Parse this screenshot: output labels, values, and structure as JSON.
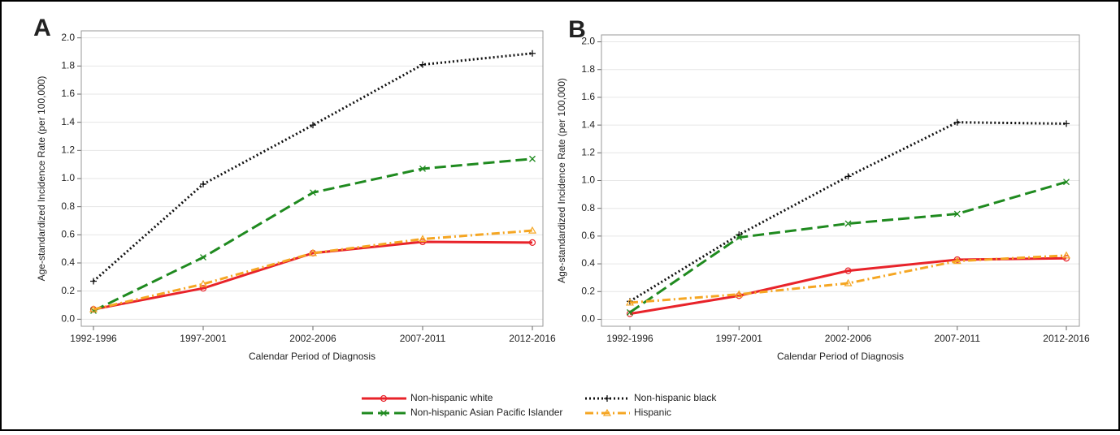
{
  "chart_data": [
    {
      "type": "line",
      "panel_label": "A",
      "x_label": "Calendar Period of Diagnosis",
      "y_label": "Age-standardized Incidence Rate (per 100,000)",
      "categories": [
        "1992-1996",
        "1997-2001",
        "2002-2006",
        "2007-2011",
        "2012-2016"
      ],
      "ylim": [
        -0.05,
        2.05
      ],
      "yticks": [
        {
          "value": 0,
          "label": "0.0"
        },
        0.2,
        0.4,
        0.6,
        0.8,
        {
          "value": 1,
          "label": "1.0"
        },
        1.2,
        1.4,
        1.6,
        1.8,
        {
          "value": 2,
          "label": "2.0"
        }
      ],
      "grid": true,
      "series": [
        {
          "name": "Non-hispanic white",
          "color": "#e8232a",
          "values": [
            0.07,
            0.22,
            0.47,
            0.55,
            0.545
          ]
        },
        {
          "name": "Non-hispanic black",
          "color": "#111111",
          "values": [
            0.27,
            0.96,
            1.38,
            1.81,
            1.89
          ]
        },
        {
          "name": "Non-hispanic Asian Pacific Islander",
          "color": "#1f8a1f",
          "values": [
            0.06,
            0.44,
            0.9,
            1.07,
            1.14
          ]
        },
        {
          "name": "Hispanic",
          "color": "#f5a623",
          "values": [
            0.07,
            0.25,
            0.47,
            0.57,
            0.63
          ]
        }
      ]
    },
    {
      "type": "line",
      "panel_label": "B",
      "x_label": "Calendar Period of Diagnosis",
      "y_label": "Age-standardized Incidence Rate (per 100,000)",
      "categories": [
        "1992-1996",
        "1997-2001",
        "2002-2006",
        "2007-2011",
        "2012-2016"
      ],
      "ylim": [
        -0.05,
        2.05
      ],
      "yticks": [
        {
          "value": 0,
          "label": "0.0"
        },
        0.2,
        0.4,
        0.6,
        0.8,
        {
          "value": 1,
          "label": "1.0"
        },
        1.2,
        1.4,
        1.6,
        1.8,
        {
          "value": 2,
          "label": "2.0"
        }
      ],
      "grid": true,
      "series": [
        {
          "color": "#e8232a",
          "values": [
            0.04,
            0.17,
            0.35,
            0.43,
            0.44
          ]
        },
        {
          "color": "#111111",
          "values": [
            0.13,
            0.61,
            1.03,
            1.42,
            1.41
          ]
        },
        {
          "color": "#1f8a1f",
          "values": [
            0.05,
            0.59,
            0.69,
            0.76,
            0.99
          ]
        },
        {
          "color": "#f5a623",
          "values": [
            0.12,
            0.18,
            0.26,
            0.42,
            0.46
          ]
        }
      ]
    }
  ]
}
